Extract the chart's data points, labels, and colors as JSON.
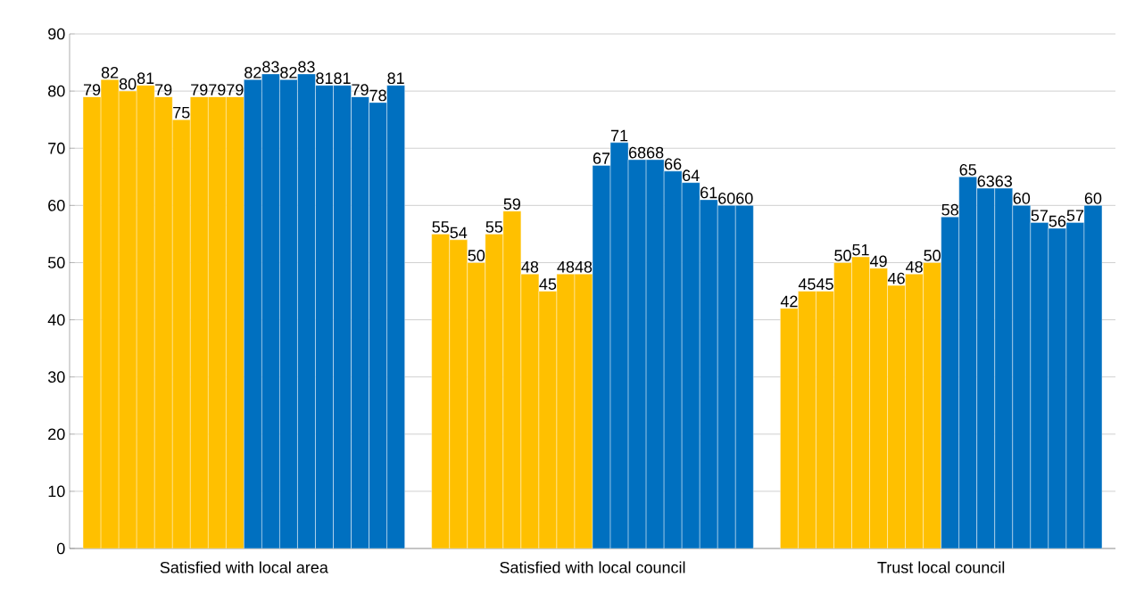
{
  "chart_data": {
    "type": "bar",
    "categories": [
      "Satisfied with local area",
      "Satisfied with local council",
      "Trust local council"
    ],
    "series": [
      {
        "color": "#ffc000",
        "values": [
          79,
          55,
          42
        ]
      },
      {
        "color": "#ffc000",
        "values": [
          82,
          54,
          45
        ]
      },
      {
        "color": "#ffc000",
        "values": [
          80,
          50,
          45
        ]
      },
      {
        "color": "#ffc000",
        "values": [
          81,
          55,
          50
        ]
      },
      {
        "color": "#ffc000",
        "values": [
          79,
          59,
          51
        ]
      },
      {
        "color": "#ffc000",
        "values": [
          75,
          48,
          49
        ]
      },
      {
        "color": "#ffc000",
        "values": [
          79,
          45,
          46
        ]
      },
      {
        "color": "#ffc000",
        "values": [
          79,
          48,
          48
        ]
      },
      {
        "color": "#ffc000",
        "values": [
          79,
          48,
          50
        ]
      },
      {
        "color": "#0070c0",
        "values": [
          82,
          67,
          58
        ]
      },
      {
        "color": "#0070c0",
        "values": [
          83,
          71,
          65
        ]
      },
      {
        "color": "#0070c0",
        "values": [
          82,
          68,
          63
        ]
      },
      {
        "color": "#0070c0",
        "values": [
          83,
          68,
          63
        ]
      },
      {
        "color": "#0070c0",
        "values": [
          81,
          66,
          60
        ]
      },
      {
        "color": "#0070c0",
        "values": [
          81,
          64,
          57
        ]
      },
      {
        "color": "#0070c0",
        "values": [
          79,
          61,
          56
        ]
      },
      {
        "color": "#0070c0",
        "values": [
          78,
          60,
          57
        ]
      },
      {
        "color": "#0070c0",
        "values": [
          81,
          60,
          60
        ]
      }
    ],
    "ylim": [
      0,
      90
    ],
    "yticks": [
      0,
      10,
      20,
      30,
      40,
      50,
      60,
      70,
      80,
      90
    ],
    "grid": "y",
    "data_labels": true
  }
}
